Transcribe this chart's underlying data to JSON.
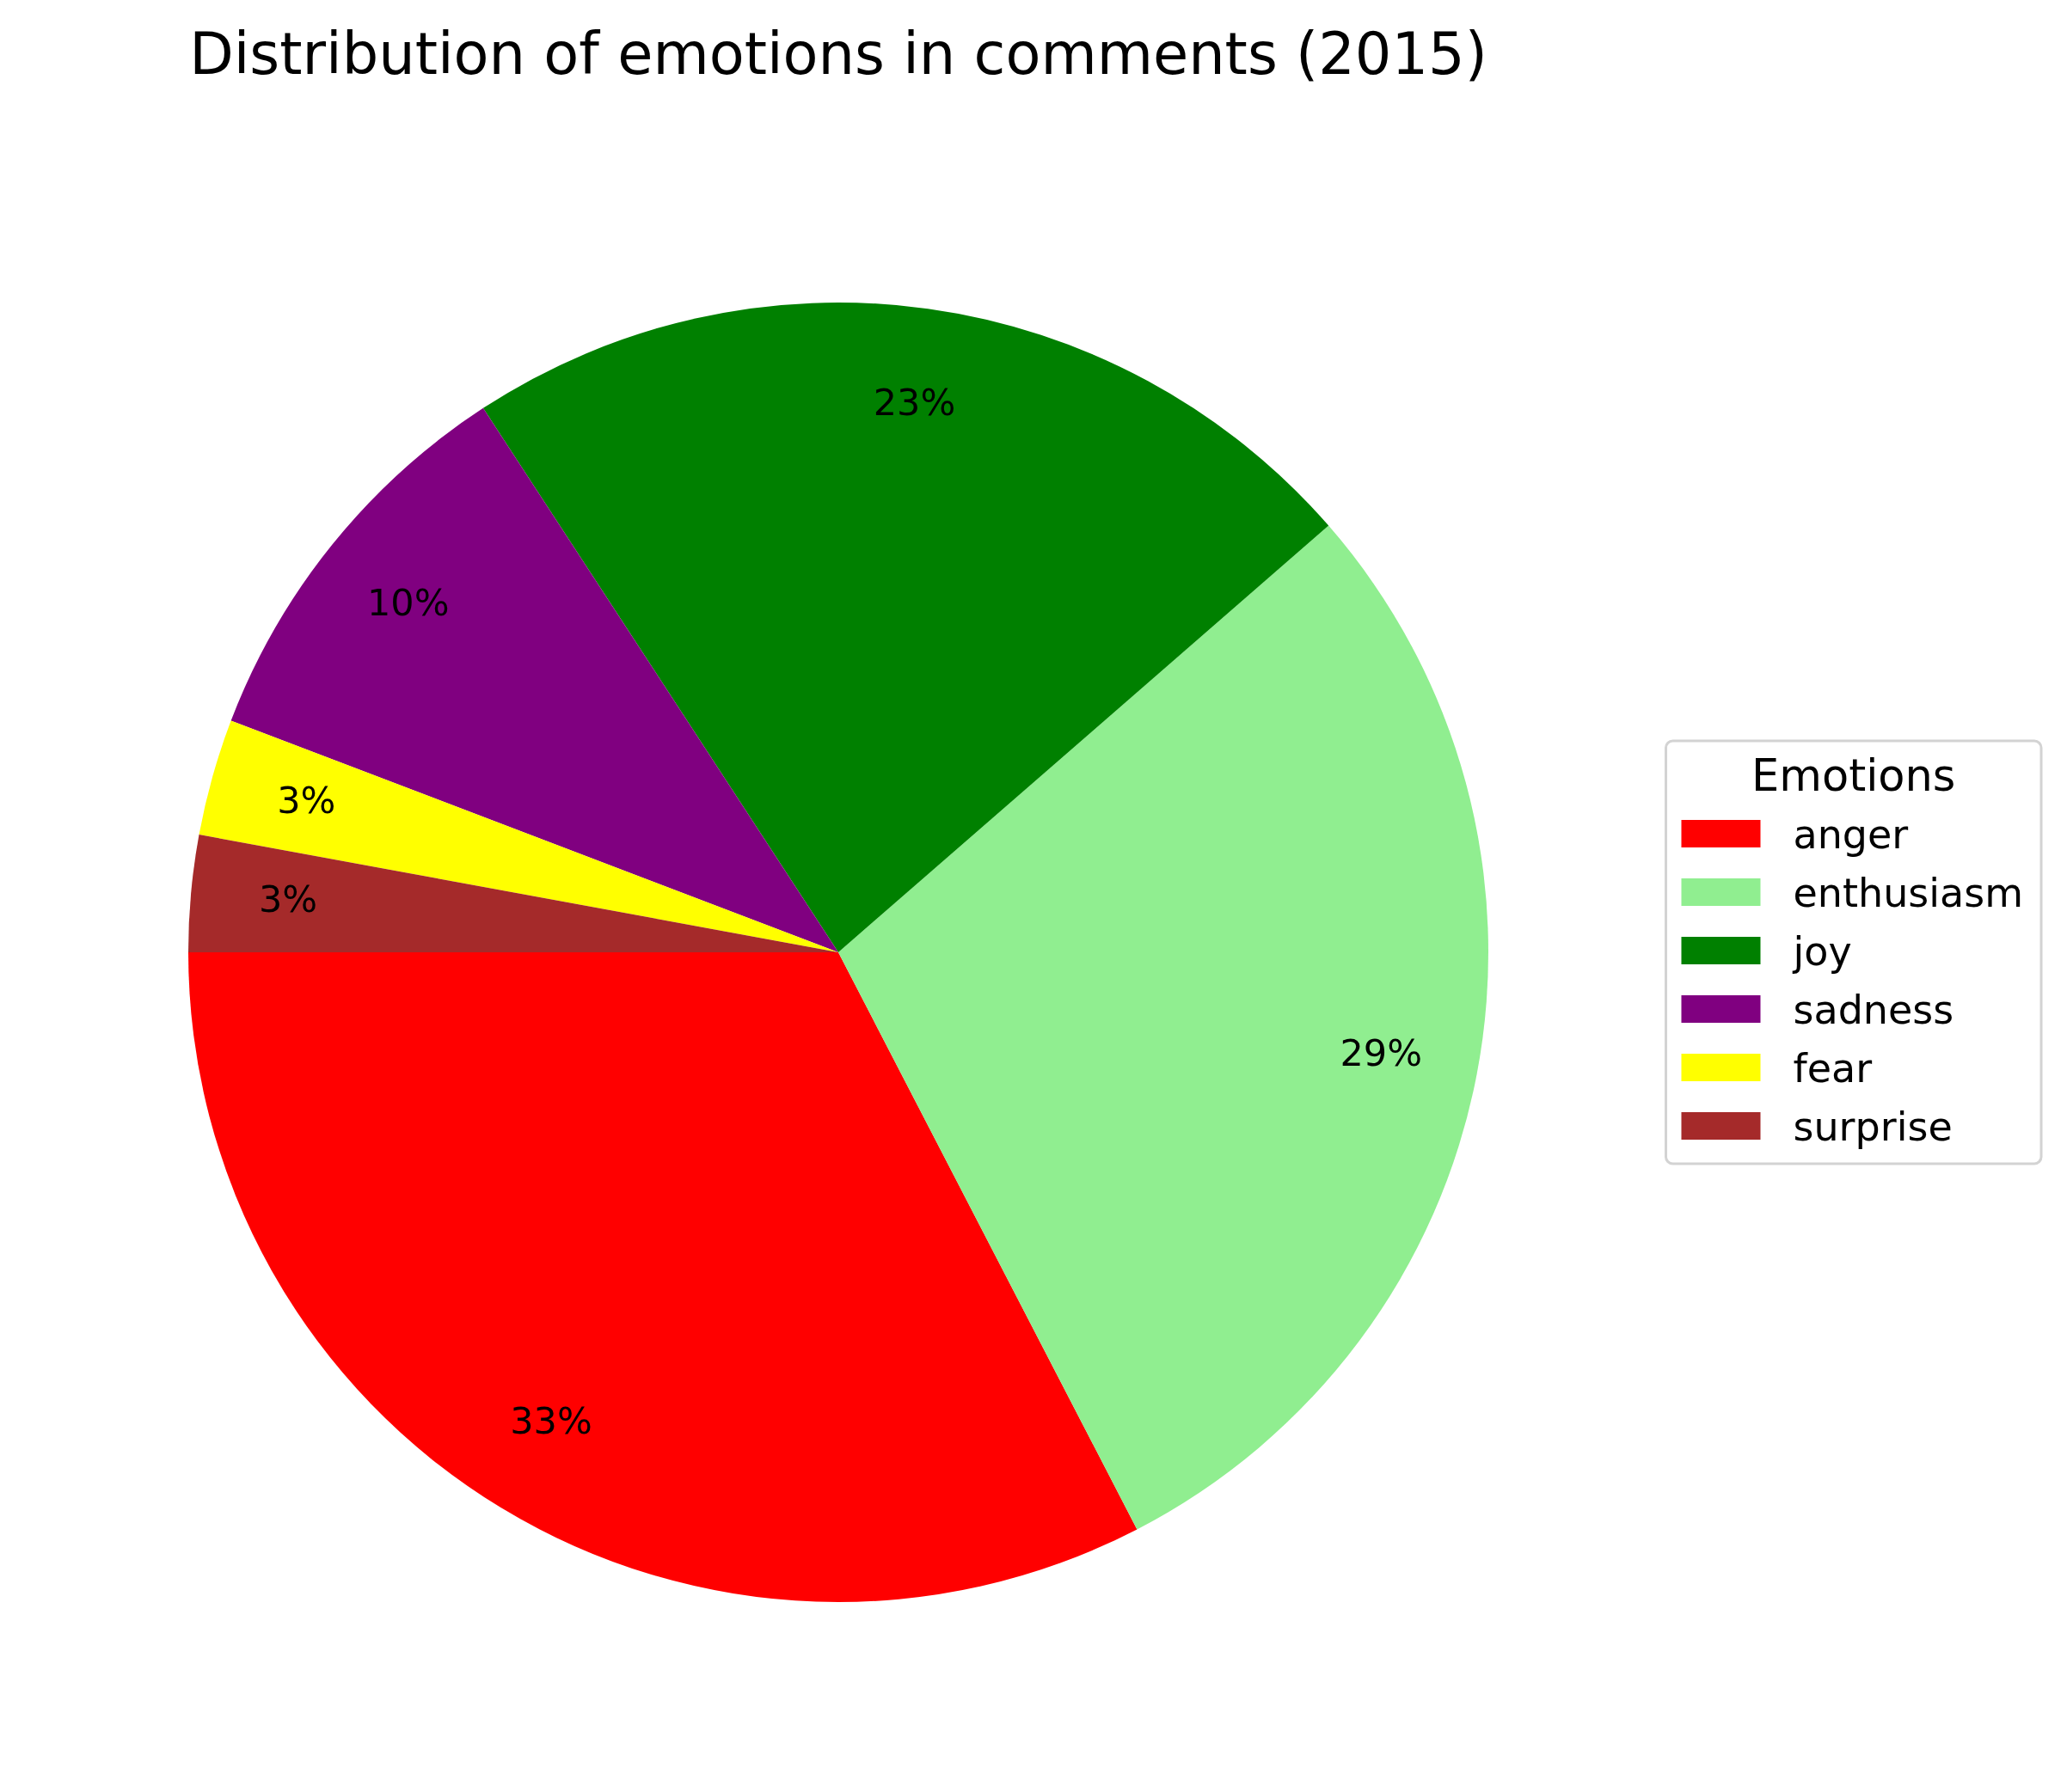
{
  "chart_data": {
    "type": "pie",
    "title": "Distribution of emotions in comments (2015)",
    "categories": [
      "anger",
      "enthusiasm",
      "joy",
      "sadness",
      "fear",
      "surprise"
    ],
    "values": [
      32.6,
      28.8,
      22.8,
      10.0,
      2.9,
      2.9
    ],
    "colors": [
      "#ff0000",
      "#90ee90",
      "#008000",
      "#800080",
      "#ffff00",
      "#a52a2a"
    ],
    "value_labels": [
      "33%",
      "29%",
      "23%",
      "10%",
      "3%",
      "3%"
    ],
    "legend": "right",
    "legend_title": "Emotions"
  }
}
